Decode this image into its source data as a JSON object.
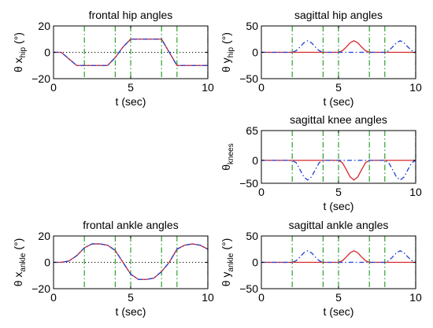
{
  "chart_data": [
    {
      "type": "line",
      "title": "frontal hip angles",
      "ylabel": {
        "main": "θ x",
        "sub": "hip",
        "unit": "(°)"
      },
      "xlabel": "t (sec)",
      "xlim": [
        0,
        10
      ],
      "ylim": [
        -20,
        20
      ],
      "xticks": [
        "0",
        "5",
        "10"
      ],
      "yticks": [
        "20",
        "0",
        "−20"
      ],
      "zero_line": "dotted",
      "phase_markers_x": [
        2,
        4,
        5,
        7,
        8,
        10
      ],
      "series": [
        {
          "color": "#d62728",
          "style": "solid",
          "x": [
            0,
            0.5,
            1,
            1.5,
            2,
            2.5,
            3,
            3.5,
            4,
            4.5,
            5,
            5.5,
            6,
            6.5,
            7,
            7.5,
            8,
            8.5,
            9,
            9.5,
            10
          ],
          "y": [
            0,
            0,
            -5,
            -10,
            -10,
            -10,
            -10,
            -10,
            -4,
            4,
            10,
            10,
            10,
            10,
            10,
            0,
            -10,
            -10,
            -10,
            -10,
            -10
          ]
        },
        {
          "color": "#1f3fd6",
          "style": "dashdot",
          "x": [
            0,
            0.5,
            1,
            1.5,
            2,
            2.5,
            3,
            3.5,
            4,
            4.5,
            5,
            5.5,
            6,
            6.5,
            7,
            7.5,
            8,
            8.5,
            9,
            9.5,
            10
          ],
          "y": [
            0,
            0,
            -5,
            -10,
            -10,
            -10,
            -10,
            -10,
            -4,
            4,
            10,
            10,
            10,
            10,
            10,
            0,
            -10,
            -10,
            -10,
            -10,
            -10
          ]
        }
      ]
    },
    {
      "type": "line",
      "title": "sagittal hip angles",
      "ylabel": {
        "main": "θ y",
        "sub": "hip",
        "unit": "(°)"
      },
      "xlabel": "t (sec)",
      "xlim": [
        0,
        10
      ],
      "ylim": [
        -50,
        50
      ],
      "xticks": [
        "0",
        "5",
        "10"
      ],
      "yticks": [
        "50",
        "0",
        "−50"
      ],
      "phase_markers_x": [
        2,
        4,
        5,
        7,
        8,
        10
      ],
      "series": [
        {
          "color": "#d62728",
          "style": "solid",
          "x": [
            0,
            5,
            5.25,
            5.5,
            5.75,
            6,
            6.25,
            6.5,
            6.75,
            7,
            10
          ],
          "y": [
            0,
            0,
            3,
            10,
            18,
            22,
            18,
            10,
            3,
            0,
            0
          ]
        },
        {
          "color": "#1f3fd6",
          "style": "dashdot",
          "x": [
            0,
            2,
            2.25,
            2.5,
            2.75,
            3,
            3.25,
            3.5,
            3.75,
            4,
            8,
            8.25,
            8.5,
            8.75,
            9,
            9.25,
            9.5,
            9.75,
            10
          ],
          "y": [
            0,
            0,
            3,
            10,
            18,
            22,
            18,
            10,
            3,
            0,
            0,
            3,
            10,
            18,
            22,
            18,
            10,
            3,
            0
          ]
        }
      ]
    },
    {
      "type": "line",
      "title": "sagittal knee angles",
      "ylabel": {
        "main": "θ",
        "sub": "knees",
        "unit": ""
      },
      "xlabel": "t (sec)",
      "xlim": [
        0,
        10
      ],
      "ylim": [
        -50,
        65
      ],
      "xticks": [
        "0",
        "5",
        "10"
      ],
      "yticks": [
        "65",
        "0",
        "−50"
      ],
      "phase_markers_x": [
        2,
        4,
        5,
        7,
        8,
        10
      ],
      "series": [
        {
          "color": "#d62728",
          "style": "solid",
          "x": [
            0,
            5,
            5.25,
            5.5,
            5.75,
            6,
            6.25,
            6.5,
            6.75,
            7,
            10
          ],
          "y": [
            0,
            0,
            -5,
            -20,
            -36,
            -43,
            -36,
            -20,
            -5,
            0,
            0
          ]
        },
        {
          "color": "#1f3fd6",
          "style": "dashdot",
          "x": [
            0,
            2,
            2.25,
            2.5,
            2.75,
            3,
            3.25,
            3.5,
            3.75,
            4,
            8,
            8.25,
            8.5,
            8.75,
            9,
            9.25,
            9.5,
            9.75,
            10
          ],
          "y": [
            0,
            0,
            -5,
            -20,
            -36,
            -43,
            -36,
            -20,
            -5,
            0,
            0,
            -5,
            -20,
            -36,
            -43,
            -36,
            -20,
            -5,
            0
          ]
        }
      ]
    },
    {
      "type": "line",
      "title": "frontal ankle angles",
      "ylabel": {
        "main": "θ x",
        "sub": "ankle",
        "unit": "(°)"
      },
      "xlabel": "t (sec)",
      "xlim": [
        0,
        10
      ],
      "ylim": [
        -20,
        20
      ],
      "xticks": [
        "0",
        "5",
        "10"
      ],
      "yticks": [
        "20",
        "0",
        "−20"
      ],
      "zero_line": "dotted",
      "phase_markers_x": [
        2,
        4,
        5,
        7,
        8,
        10
      ],
      "series": [
        {
          "color": "#d62728",
          "style": "solid",
          "x": [
            0,
            0.5,
            1,
            1.5,
            2,
            2.5,
            3,
            3.5,
            4,
            4.5,
            5,
            5.5,
            6,
            6.5,
            7,
            7.5,
            8,
            8.5,
            9,
            9.5,
            10
          ],
          "y": [
            0,
            0,
            1,
            5,
            11,
            14,
            14,
            13,
            9,
            0,
            -9,
            -13,
            -13,
            -12,
            -7,
            0,
            10,
            13,
            14,
            13,
            10
          ]
        },
        {
          "color": "#1f3fd6",
          "style": "dashdot",
          "x": [
            0,
            0.5,
            1,
            1.5,
            2,
            2.5,
            3,
            3.5,
            4,
            4.5,
            5,
            5.5,
            6,
            6.5,
            7,
            7.5,
            8,
            8.5,
            9,
            9.5,
            10
          ],
          "y": [
            0,
            0,
            1,
            5,
            11,
            14,
            14,
            13,
            9,
            0,
            -9,
            -13,
            -13,
            -12,
            -7,
            0,
            10,
            13,
            14,
            13,
            10
          ]
        }
      ]
    },
    {
      "type": "line",
      "title": "sagittal ankle angles",
      "ylabel": {
        "main": "θ y",
        "sub": "ankle",
        "unit": "(°)"
      },
      "xlabel": "t (sec)",
      "xlim": [
        0,
        10
      ],
      "ylim": [
        -50,
        50
      ],
      "xticks": [
        "0",
        "5",
        "10"
      ],
      "yticks": [
        "50",
        "0",
        "−50"
      ],
      "phase_markers_x": [
        2,
        4,
        5,
        7,
        8,
        10
      ],
      "series": [
        {
          "color": "#d62728",
          "style": "solid",
          "x": [
            0,
            5,
            5.25,
            5.5,
            5.75,
            6,
            6.25,
            6.5,
            6.75,
            7,
            10
          ],
          "y": [
            0,
            0,
            3,
            10,
            18,
            22,
            18,
            10,
            3,
            0,
            0
          ]
        },
        {
          "color": "#1f3fd6",
          "style": "dashdot",
          "x": [
            0,
            2,
            2.25,
            2.5,
            2.75,
            3,
            3.25,
            3.5,
            3.75,
            4,
            8,
            8.25,
            8.5,
            8.75,
            9,
            9.25,
            9.5,
            9.75,
            10
          ],
          "y": [
            0,
            0,
            3,
            10,
            18,
            22,
            18,
            10,
            3,
            0,
            0,
            3,
            10,
            18,
            22,
            18,
            10,
            3,
            0
          ]
        }
      ]
    }
  ],
  "colors": {
    "marker": "#2ca02c",
    "axis": "#000000",
    "zero_line": "#000000"
  }
}
